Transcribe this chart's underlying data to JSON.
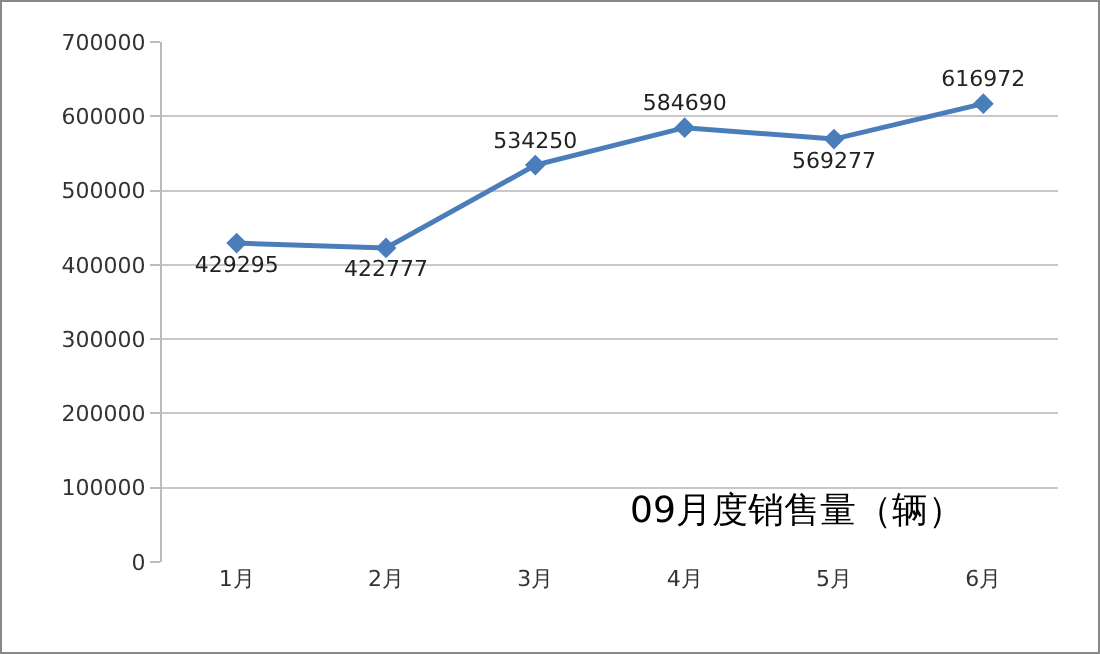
{
  "chart_data": {
    "type": "line",
    "title": "09月度销售量（辆）",
    "categories": [
      "1月",
      "2月",
      "3月",
      "4月",
      "5月",
      "6月"
    ],
    "series": [
      {
        "color": "#4a7ebb",
        "values": [
          429295,
          422777,
          534250,
          584690,
          569277,
          616972
        ]
      }
    ],
    "ylim": [
      0,
      700000
    ],
    "yticks": [
      0,
      100000,
      200000,
      300000,
      400000,
      500000,
      600000,
      700000
    ],
    "grid": "y",
    "marker": "diamond",
    "line_style": "solid",
    "data_labels": true
  }
}
